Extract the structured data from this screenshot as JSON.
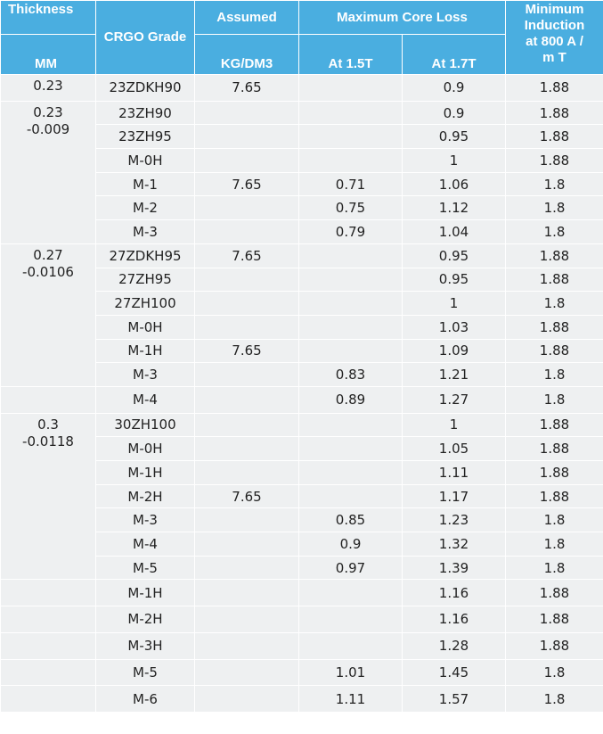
{
  "headers": {
    "thickness": "Thickness",
    "mm": "MM",
    "grade": "CRGO Grade",
    "assumed": "Assumed",
    "kgdm3": "KG/DM3",
    "max_core_loss": "Maximum Core Loss",
    "at15": "At 1.5T",
    "at17": "At 1.7T",
    "min_induction_1": "Minimum",
    "min_induction_2": "Induction",
    "min_induction_3": "at 800 A /",
    "min_induction_4": "m T"
  },
  "groups": [
    {
      "thickness": [
        "0.23"
      ],
      "rows": [
        {
          "grade": "23ZDKH90",
          "density": "7.65",
          "loss15": "",
          "loss17": "0.9",
          "induction": "1.88"
        }
      ]
    },
    {
      "thickness": [
        "0.23",
        "-0.009"
      ],
      "rows": [
        {
          "grade": "23ZH90",
          "density": "",
          "loss15": "",
          "loss17": "0.9",
          "induction": "1.88"
        },
        {
          "grade": "23ZH95",
          "density": "",
          "loss15": "",
          "loss17": "0.95",
          "induction": "1.88"
        },
        {
          "grade": "M-0H",
          "density": "",
          "loss15": "",
          "loss17": "1",
          "induction": "1.88"
        },
        {
          "grade": "M-1",
          "density": "7.65",
          "loss15": "0.71",
          "loss17": "1.06",
          "induction": "1.8"
        },
        {
          "grade": "M-2",
          "density": "",
          "loss15": "0.75",
          "loss17": "1.12",
          "induction": "1.8"
        },
        {
          "grade": "M-3",
          "density": "",
          "loss15": "0.79",
          "loss17": "1.04",
          "induction": "1.8"
        }
      ]
    },
    {
      "thickness": [
        "0.27",
        "-0.0106"
      ],
      "rows": [
        {
          "grade": "27ZDKH95",
          "density": "7.65",
          "loss15": "",
          "loss17": "0.95",
          "induction": "1.88"
        },
        {
          "grade": "27ZH95",
          "density": "",
          "loss15": "",
          "loss17": "0.95",
          "induction": "1.88"
        },
        {
          "grade": "27ZH100",
          "density": "",
          "loss15": "",
          "loss17": "1",
          "induction": "1.8"
        },
        {
          "grade": "M-0H",
          "density": "",
          "loss15": "",
          "loss17": "1.03",
          "induction": "1.88"
        },
        {
          "grade": "M-1H",
          "density": "7.65",
          "loss15": "",
          "loss17": "1.09",
          "induction": "1.88"
        },
        {
          "grade": "M-3",
          "density": "",
          "loss15": "0.83",
          "loss17": "1.21",
          "induction": "1.8"
        }
      ]
    },
    {
      "thickness": [],
      "rows": [
        {
          "grade": "M-4",
          "density": "",
          "loss15": "0.89",
          "loss17": "1.27",
          "induction": "1.8"
        }
      ]
    },
    {
      "thickness": [
        "0.3",
        "-0.0118"
      ],
      "rows": [
        {
          "grade": "30ZH100",
          "density": "",
          "loss15": "",
          "loss17": "1",
          "induction": "1.88"
        },
        {
          "grade": "M-0H",
          "density": "",
          "loss15": "",
          "loss17": "1.05",
          "induction": "1.88"
        },
        {
          "grade": "M-1H",
          "density": "",
          "loss15": "",
          "loss17": "1.11",
          "induction": "1.88"
        },
        {
          "grade": "M-2H",
          "density": "7.65",
          "loss15": "",
          "loss17": "1.17",
          "induction": "1.88"
        },
        {
          "grade": "M-3",
          "density": "",
          "loss15": "0.85",
          "loss17": "1.23",
          "induction": "1.8"
        },
        {
          "grade": "M-4",
          "density": "",
          "loss15": "0.9",
          "loss17": "1.32",
          "induction": "1.8"
        },
        {
          "grade": "M-5",
          "density": "",
          "loss15": "0.97",
          "loss17": "1.39",
          "induction": "1.8"
        }
      ]
    },
    {
      "thickness": [],
      "rows": [
        {
          "grade": "M-1H",
          "density": "",
          "loss15": "",
          "loss17": "1.16",
          "induction": "1.88"
        }
      ]
    },
    {
      "thickness": [],
      "rows": [
        {
          "grade": "M-2H",
          "density": "",
          "loss15": "",
          "loss17": "1.16",
          "induction": "1.88"
        }
      ]
    },
    {
      "thickness": [],
      "rows": [
        {
          "grade": "M-3H",
          "density": "",
          "loss15": "",
          "loss17": "1.28",
          "induction": "1.88"
        }
      ]
    },
    {
      "thickness": [],
      "rows": [
        {
          "grade": "M-5",
          "density": "",
          "loss15": "1.01",
          "loss17": "1.45",
          "induction": "1.8"
        }
      ]
    },
    {
      "thickness": [],
      "rows": [
        {
          "grade": "M-6",
          "density": "",
          "loss15": "1.11",
          "loss17": "1.57",
          "induction": "1.8"
        }
      ]
    }
  ]
}
